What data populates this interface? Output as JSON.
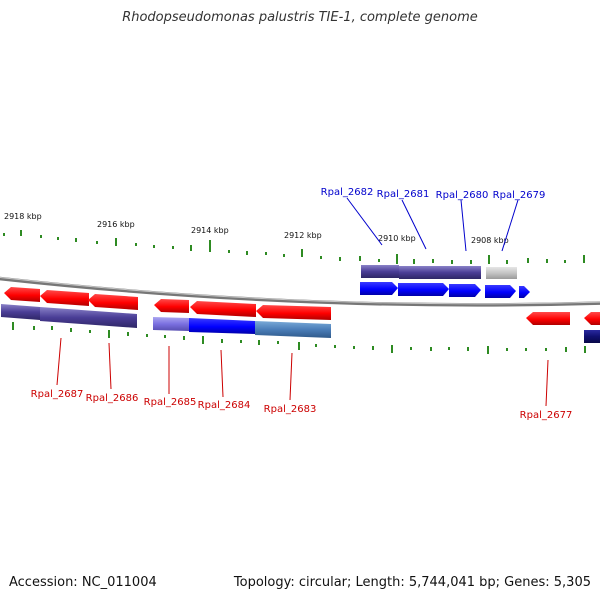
{
  "title": "Rhodopseudomonas palustris TIE-1, complete genome",
  "accession_text": "Accession: NC_011004",
  "summary_text": "Topology: circular; Length: 5,744,041 bp; Genes: 5,305",
  "colors": {
    "forward": "#0000ff",
    "reverse": "#ff0000",
    "backbone": "#888888",
    "gc_ticks": "#2e8b22",
    "label_forward": "#0000cc",
    "label_reverse": "#cc0000"
  },
  "scale_labels": [
    "2918 kbp",
    "2916 kbp",
    "2914 kbp",
    "2912 kbp",
    "2910 kbp",
    "2908 kbp"
  ],
  "forward_gene_labels": [
    "Rpal_2682",
    "Rpal_2681",
    "Rpal_2680",
    "Rpal_2679"
  ],
  "reverse_gene_labels": [
    "Rpal_2687",
    "Rpal_2686",
    "Rpal_2685",
    "Rpal_2684",
    "Rpal_2683",
    "Rpal_2677"
  ]
}
